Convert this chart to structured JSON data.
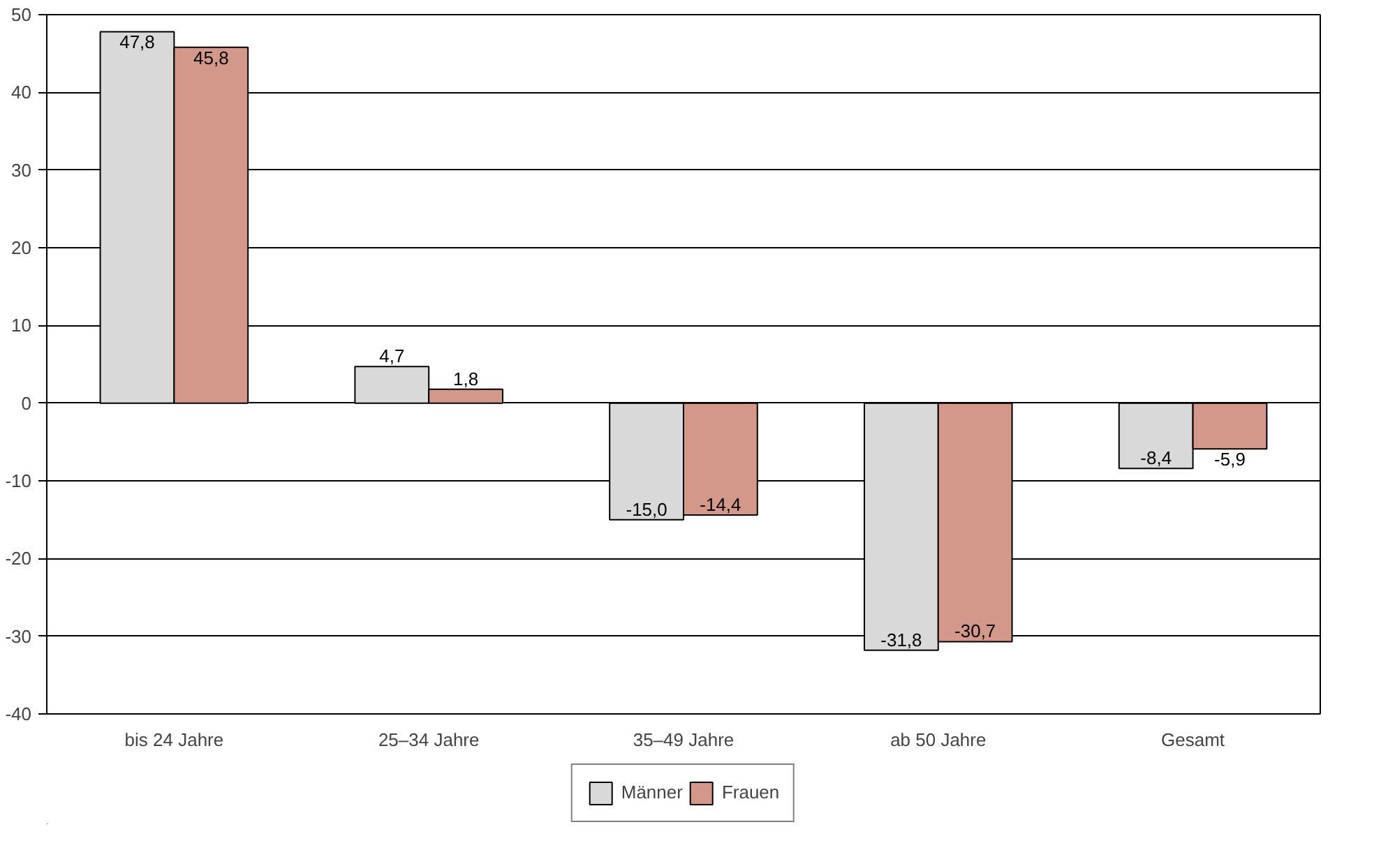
{
  "chart_data": {
    "type": "bar",
    "categories": [
      "bis 24 Jahre",
      "25–34 Jahre",
      "35–49 Jahre",
      "ab 50 Jahre",
      "Gesamt"
    ],
    "series": [
      {
        "name": "Männer",
        "color": "#d9d9d9",
        "values": [
          47.8,
          4.7,
          -15.0,
          -31.8,
          -8.4
        ],
        "value_labels": [
          "47,8",
          "4,7",
          "-15,0",
          "-31,8",
          "-8,4"
        ]
      },
      {
        "name": "Frauen",
        "color": "#d4988a",
        "values": [
          45.8,
          1.8,
          -14.4,
          -30.7,
          -5.9
        ],
        "value_labels": [
          "45,8",
          "1,8",
          "-14,4",
          "-30,7",
          "-5,9"
        ]
      }
    ],
    "ylim": [
      -40,
      50
    ],
    "yticks": [
      -40,
      -30,
      -20,
      -10,
      0,
      10,
      20,
      30,
      40,
      50
    ],
    "grid": "y",
    "legend": "bottom"
  }
}
